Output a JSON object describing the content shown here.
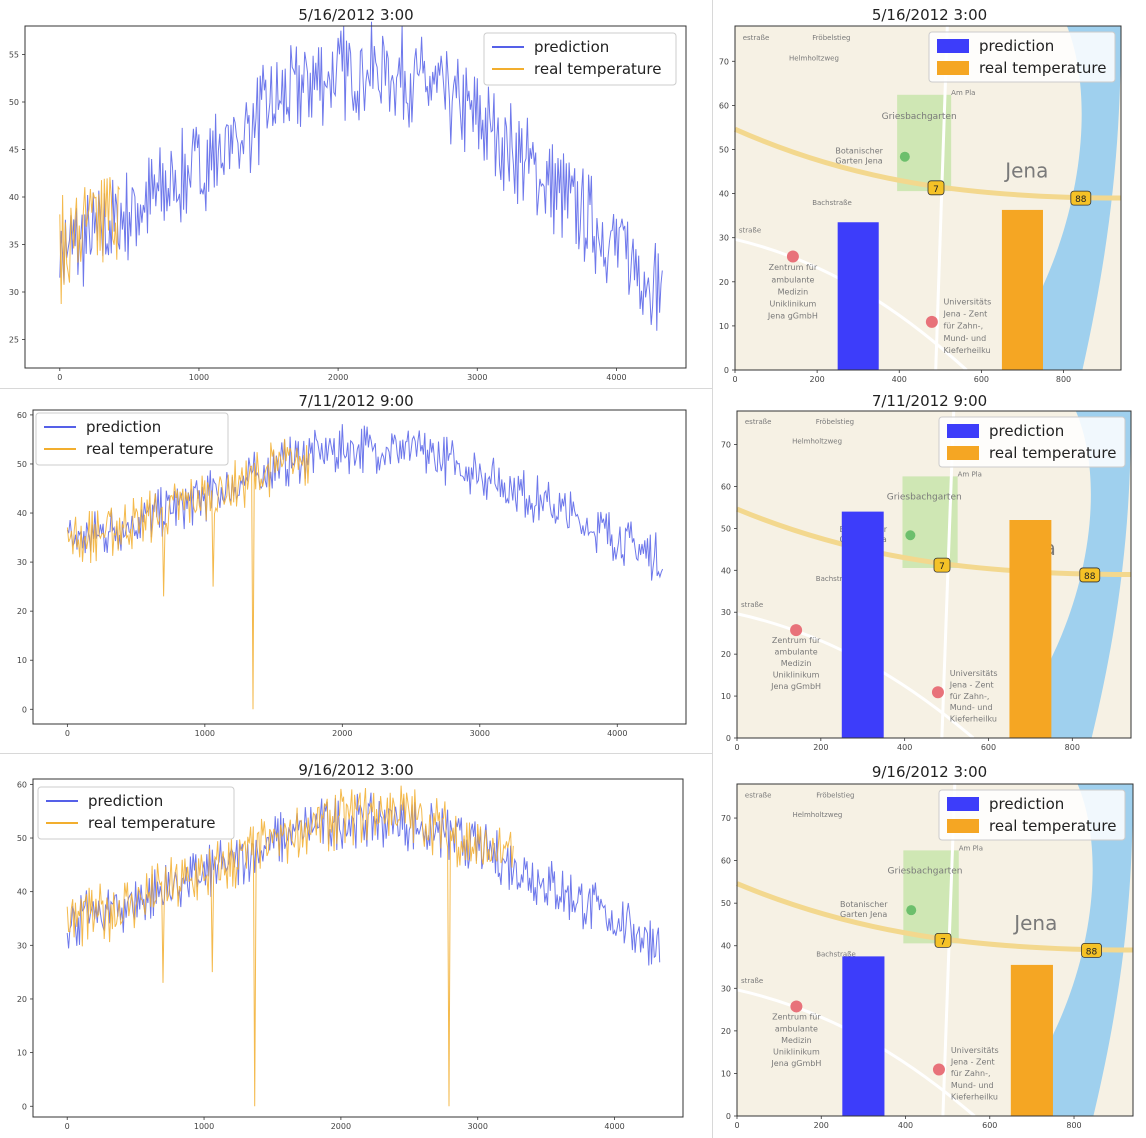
{
  "colors": {
    "prediction": "#5560e8",
    "real": "#f2ae2e",
    "bar_pred": "#3d3dfa",
    "bar_real": "#f5a623"
  },
  "map_labels": {
    "jena": "Jena",
    "griesbachgarten": "Griesbachgarten",
    "botanischer": "Botanischer",
    "garten_jena": "Garten Jena",
    "zentrum_lines": [
      "Zentrum für",
      "ambulante",
      "Medizin",
      "Uniklinikum",
      "Jena gGmbH"
    ],
    "uni_lines": [
      "Universitäts",
      "Jena - Zent",
      "für Zahn-,",
      "Mund- und",
      "Kieferheilku"
    ],
    "bachstrasse": "Bachstraße",
    "frobelstieg": "Fröbelstieg",
    "helmholtzweg": "Helmholtzweg",
    "estrasse": "estraße",
    "astrasse": "straße",
    "am_pla": "Am Pla",
    "badge_7": "7",
    "badge_88": "88"
  },
  "chart_data": [
    {
      "type": "line",
      "title": "5/16/2012 3:00",
      "xlim": [
        -250,
        4500
      ],
      "ylim": [
        22,
        58
      ],
      "x_ticks": [
        0,
        1000,
        2000,
        3000,
        4000
      ],
      "y_ticks": [
        25,
        30,
        35,
        40,
        45,
        50,
        55
      ],
      "legend_position": "top-right",
      "series": [
        {
          "name": "prediction",
          "x_end": 4330,
          "points": [
            [
              0,
              33
            ],
            [
              300,
              35
            ],
            [
              600,
              38
            ],
            [
              900,
              41
            ],
            [
              1200,
              44
            ],
            [
              1500,
              48
            ],
            [
              1800,
              51
            ],
            [
              2100,
              52
            ],
            [
              2400,
              52
            ],
            [
              2700,
              50
            ],
            [
              3000,
              47
            ],
            [
              3300,
              43
            ],
            [
              3600,
              39
            ],
            [
              3900,
              35
            ],
            [
              4330,
              29
            ]
          ]
        },
        {
          "name": "real temperature",
          "x_end": 430,
          "points": [
            [
              0,
              33
            ],
            [
              150,
              35
            ],
            [
              300,
              36
            ],
            [
              430,
              38
            ]
          ]
        }
      ]
    },
    {
      "type": "bar",
      "title": "5/16/2012 3:00",
      "xlim": [
        0,
        940
      ],
      "ylim": [
        0,
        78
      ],
      "x_ticks": [
        0,
        200,
        400,
        600,
        800
      ],
      "y_ticks": [
        0,
        10,
        20,
        30,
        40,
        50,
        60,
        70
      ],
      "legend_position": "top-right",
      "series": [
        {
          "name": "prediction",
          "x": 300,
          "value": 33.5
        },
        {
          "name": "real temperature",
          "x": 700,
          "value": 36.3
        }
      ]
    },
    {
      "type": "line",
      "title": "7/11/2012 9:00",
      "xlim": [
        -250,
        4500
      ],
      "ylim": [
        -3,
        61
      ],
      "x_ticks": [
        0,
        1000,
        2000,
        3000,
        4000
      ],
      "y_ticks": [
        0,
        10,
        20,
        30,
        40,
        50,
        60
      ],
      "legend_position": "top-left",
      "series": [
        {
          "name": "prediction",
          "x_end": 4330,
          "points": [
            [
              0,
              33
            ],
            [
              300,
              35
            ],
            [
              600,
              38
            ],
            [
              900,
              41
            ],
            [
              1200,
              44
            ],
            [
              1500,
              48
            ],
            [
              1800,
              51
            ],
            [
              2100,
              52
            ],
            [
              2400,
              52
            ],
            [
              2700,
              50
            ],
            [
              3000,
              47
            ],
            [
              3300,
              43
            ],
            [
              3600,
              39
            ],
            [
              3900,
              35
            ],
            [
              4330,
              29
            ]
          ]
        },
        {
          "name": "real temperature",
          "x_end": 1760,
          "points": [
            [
              0,
              33
            ],
            [
              300,
              35
            ],
            [
              600,
              38
            ],
            [
              900,
              41
            ],
            [
              1200,
              44
            ],
            [
              1500,
              48
            ],
            [
              1760,
              50
            ]
          ],
          "dips": [
            [
              700,
              23
            ],
            [
              1060,
              25
            ],
            [
              1350,
              0
            ]
          ]
        }
      ]
    },
    {
      "type": "bar",
      "title": "7/11/2012 9:00",
      "xlim": [
        0,
        940
      ],
      "ylim": [
        0,
        78
      ],
      "x_ticks": [
        0,
        200,
        400,
        600,
        800
      ],
      "y_ticks": [
        0,
        10,
        20,
        30,
        40,
        50,
        60,
        70
      ],
      "legend_position": "top-right",
      "series": [
        {
          "name": "prediction",
          "x": 300,
          "value": 54
        },
        {
          "name": "real temperature",
          "x": 700,
          "value": 52
        }
      ]
    },
    {
      "type": "line",
      "title": "9/16/2012 3:00",
      "xlim": [
        -250,
        4500
      ],
      "ylim": [
        -2,
        61
      ],
      "x_ticks": [
        0,
        1000,
        2000,
        3000,
        4000
      ],
      "y_ticks": [
        0,
        10,
        20,
        30,
        40,
        50,
        60
      ],
      "legend_position": "top-left",
      "series": [
        {
          "name": "prediction",
          "x_end": 4330,
          "points": [
            [
              0,
              33
            ],
            [
              300,
              35
            ],
            [
              600,
              38
            ],
            [
              900,
              41
            ],
            [
              1200,
              44
            ],
            [
              1500,
              48
            ],
            [
              1800,
              51
            ],
            [
              2100,
              52
            ],
            [
              2400,
              52
            ],
            [
              2700,
              50
            ],
            [
              3000,
              47
            ],
            [
              3300,
              43
            ],
            [
              3600,
              39
            ],
            [
              3900,
              35
            ],
            [
              4330,
              29
            ]
          ]
        },
        {
          "name": "real temperature",
          "x_end": 3260,
          "points": [
            [
              0,
              33
            ],
            [
              300,
              35
            ],
            [
              600,
              38
            ],
            [
              900,
              41
            ],
            [
              1200,
              44
            ],
            [
              1500,
              48
            ],
            [
              1800,
              51
            ],
            [
              2100,
              53
            ],
            [
              2400,
              54
            ],
            [
              2700,
              51
            ],
            [
              3000,
              47
            ],
            [
              3260,
              45
            ]
          ],
          "dips": [
            [
              700,
              23
            ],
            [
              1060,
              25
            ],
            [
              1370,
              0
            ],
            [
              2790,
              0
            ]
          ]
        }
      ]
    },
    {
      "type": "bar",
      "title": "9/16/2012 3:00",
      "xlim": [
        0,
        940
      ],
      "ylim": [
        0,
        78
      ],
      "x_ticks": [
        0,
        200,
        400,
        600,
        800
      ],
      "y_ticks": [
        0,
        10,
        20,
        30,
        40,
        50,
        60,
        70
      ],
      "legend_position": "top-right",
      "series": [
        {
          "name": "prediction",
          "x": 300,
          "value": 37.5
        },
        {
          "name": "real temperature",
          "x": 700,
          "value": 35.5
        }
      ]
    }
  ]
}
